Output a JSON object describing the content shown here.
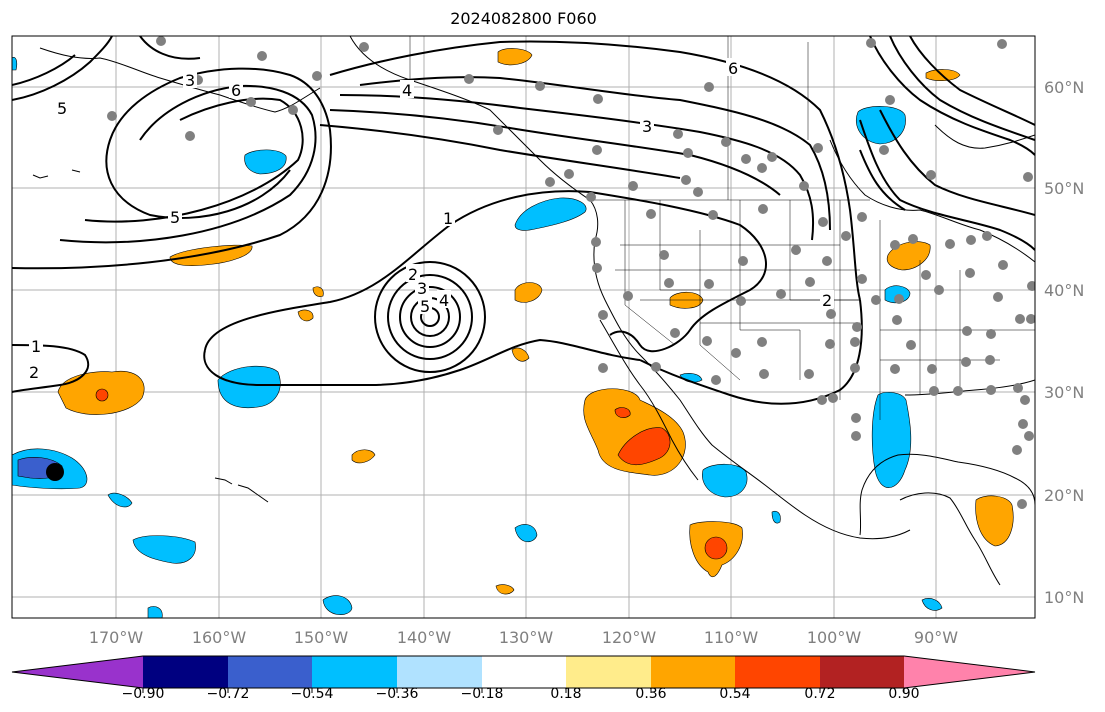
{
  "title": "2024082800 F060",
  "map": {
    "lon_labels": [
      "170°W",
      "160°W",
      "150°W",
      "140°W",
      "130°W",
      "120°W",
      "110°W",
      "100°W",
      "90°W"
    ],
    "lat_labels": [
      "60°N",
      "50°N",
      "40°N",
      "30°N",
      "20°N",
      "10°N"
    ],
    "contour_labels": [
      "1",
      "2",
      "3",
      "4",
      "5",
      "6"
    ],
    "gridlines": true
  },
  "colorbar": {
    "ticks": [
      "−0.90",
      "−0.72",
      "−0.54",
      "−0.36",
      "−0.18",
      "0.18",
      "0.36",
      "0.54",
      "0.72",
      "0.90"
    ],
    "colors": [
      "#9932cc",
      "#000080",
      "#3a5fcd",
      "#00bfff",
      "#b0e2ff",
      "#ffffff",
      "#ffec8b",
      "#ffa500",
      "#ff4500",
      "#b22222",
      "#ff82ab"
    ]
  }
}
